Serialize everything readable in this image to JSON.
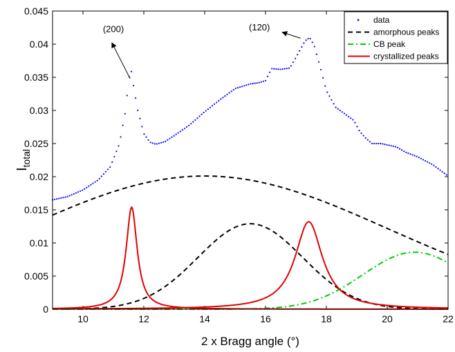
{
  "chart_data": {
    "type": "line",
    "xlabel": "2 x Bragg angle (°)",
    "ylabel_main": "I",
    "ylabel_sub": "total",
    "xlim": [
      9,
      22
    ],
    "ylim": [
      0,
      0.045
    ],
    "xticks": [
      10,
      12,
      14,
      16,
      18,
      20,
      22
    ],
    "xtick_labels": [
      "10",
      "12",
      "14",
      "16",
      "18",
      "20",
      "22"
    ],
    "yticks": [
      0,
      0.005,
      0.01,
      0.015,
      0.02,
      0.025,
      0.03,
      0.035,
      0.04,
      0.045
    ],
    "ytick_labels": [
      "0",
      "0.005",
      "0.01",
      "0.015",
      "0.02",
      "0.025",
      "0.03",
      "0.035",
      "0.04",
      "0.045"
    ],
    "legend_position": "top-right",
    "legend": [
      {
        "label": "data",
        "color": "#0000ff",
        "style": "dots"
      },
      {
        "label": "amorphous peaks",
        "color": "#000000",
        "style": "dashed"
      },
      {
        "label": "CB peak",
        "color": "#00cc00",
        "style": "dashdot"
      },
      {
        "label": "crystallized peaks",
        "color": "#e00000",
        "style": "solid"
      }
    ],
    "series": [
      {
        "name": "data",
        "style": "dots",
        "color": "#0000ff",
        "step": 0.07,
        "anchors": [
          [
            9.0,
            0.0165
          ],
          [
            9.5,
            0.017
          ],
          [
            10.0,
            0.018
          ],
          [
            10.5,
            0.0195
          ],
          [
            10.9,
            0.0215
          ],
          [
            11.2,
            0.025
          ],
          [
            11.4,
            0.03
          ],
          [
            11.5,
            0.0345
          ],
          [
            11.57,
            0.0365
          ],
          [
            11.65,
            0.034
          ],
          [
            11.8,
            0.03
          ],
          [
            12.0,
            0.0265
          ],
          [
            12.2,
            0.0252
          ],
          [
            12.4,
            0.0249
          ],
          [
            12.7,
            0.0253
          ],
          [
            13.0,
            0.0262
          ],
          [
            13.5,
            0.0278
          ],
          [
            14.0,
            0.0298
          ],
          [
            14.5,
            0.0316
          ],
          [
            15.0,
            0.0333
          ],
          [
            15.5,
            0.034
          ],
          [
            15.8,
            0.0342
          ],
          [
            16.0,
            0.0345
          ],
          [
            16.2,
            0.0363
          ],
          [
            16.5,
            0.0362
          ],
          [
            16.8,
            0.0364
          ],
          [
            17.0,
            0.038
          ],
          [
            17.3,
            0.0405
          ],
          [
            17.45,
            0.041
          ],
          [
            17.6,
            0.0398
          ],
          [
            17.8,
            0.0365
          ],
          [
            18.0,
            0.033
          ],
          [
            18.3,
            0.0305
          ],
          [
            18.6,
            0.0295
          ],
          [
            18.9,
            0.0285
          ],
          [
            19.1,
            0.0268
          ],
          [
            19.3,
            0.0258
          ],
          [
            19.5,
            0.025
          ],
          [
            19.8,
            0.025
          ],
          [
            20.0,
            0.0248
          ],
          [
            20.3,
            0.0245
          ],
          [
            20.6,
            0.0237
          ],
          [
            21.0,
            0.023
          ],
          [
            21.5,
            0.0218
          ],
          [
            22.0,
            0.0201
          ]
        ]
      },
      {
        "name": "amorphous peaks",
        "style": "dashed",
        "color": "#000000",
        "curves": [
          {
            "kind": "gaussian",
            "amplitude": 0.0201,
            "center": 14.0,
            "sigma": 6.0
          },
          {
            "kind": "gaussian",
            "amplitude": 0.0129,
            "center": 15.5,
            "sigma": 1.72
          }
        ]
      },
      {
        "name": "CB peak",
        "style": "dashdot",
        "color": "#00cc00",
        "curves": [
          {
            "kind": "gaussian",
            "amplitude": 0.0086,
            "center": 20.9,
            "sigma": 1.7
          }
        ]
      },
      {
        "name": "crystallized peaks",
        "style": "solid",
        "color": "#e00000",
        "curves": [
          {
            "kind": "lorentzian",
            "amplitude": 0.0154,
            "center": 11.6,
            "gamma": 0.22
          },
          {
            "kind": "lorentzian",
            "amplitude": 0.0132,
            "center": 17.42,
            "gamma": 0.55
          }
        ]
      }
    ],
    "annotations": [
      {
        "text": "(200)",
        "text_x": 11.0,
        "text_y": 0.0418,
        "arrow_from": [
          11.55,
          0.0348
        ],
        "arrow_to": [
          10.95,
          0.0402
        ]
      },
      {
        "text": "(120)",
        "text_x": 15.8,
        "text_y": 0.0421,
        "arrow_from": [
          17.15,
          0.0409
        ],
        "arrow_to": [
          16.55,
          0.0418
        ]
      }
    ]
  }
}
